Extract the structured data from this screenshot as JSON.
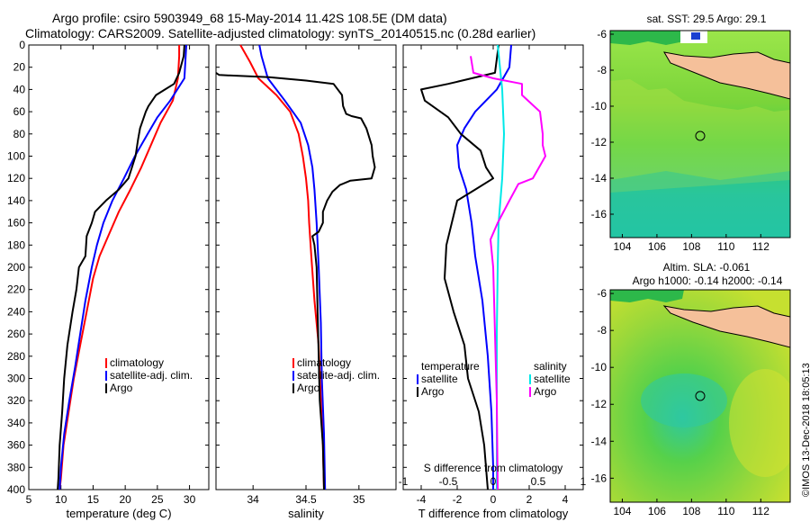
{
  "titles": {
    "line1": "Argo profile: csiro 5903949_68 15-May-2014 11.42S 108.5E (DM data)",
    "line2": "Climatology: CARS2009. Satellite-adjusted climatology: synTS_20140515.nc (0.28d earlier)"
  },
  "colors": {
    "climatology": "#ff0000",
    "satellite": "#0000ff",
    "argo": "#000000",
    "sat_salinity": "#00e8e8",
    "argo_salinity": "#ff00ff"
  },
  "chart_data": [
    {
      "type": "line",
      "title": "temperature profile",
      "xlabel": "temperature (deg C)",
      "ylabel": "",
      "xlim": [
        5,
        33
      ],
      "ylim": [
        400,
        0
      ],
      "xticks": [
        "5",
        "10",
        "15",
        "20",
        "25",
        "30"
      ],
      "yticks": [
        "0",
        "20",
        "40",
        "60",
        "80",
        "100",
        "120",
        "140",
        "160",
        "180",
        "200",
        "220",
        "240",
        "260",
        "280",
        "300",
        "320",
        "340",
        "360",
        "380",
        "400"
      ],
      "legend": {
        "position": "lower-right",
        "entries": [
          "climatology",
          "satellite-adj. clim.",
          "Argo"
        ]
      },
      "series": [
        {
          "name": "climatology",
          "color": "#ff0000",
          "points": [
            [
              28.4,
              0
            ],
            [
              28.4,
              10
            ],
            [
              28.2,
              30
            ],
            [
              27.4,
              50
            ],
            [
              25.5,
              70
            ],
            [
              24.0,
              90
            ],
            [
              22.5,
              110
            ],
            [
              20.8,
              130
            ],
            [
              19.0,
              150
            ],
            [
              17.5,
              170
            ],
            [
              16.0,
              190
            ],
            [
              15.0,
              210
            ],
            [
              14.0,
              240
            ],
            [
              13.0,
              270
            ],
            [
              12.0,
              300
            ],
            [
              11.2,
              330
            ],
            [
              10.4,
              360
            ],
            [
              10.0,
              390
            ],
            [
              9.8,
              400
            ]
          ]
        },
        {
          "name": "satellite-adj. clim.",
          "color": "#0000ff",
          "points": [
            [
              29.5,
              0
            ],
            [
              29.2,
              30
            ],
            [
              27.0,
              50
            ],
            [
              25.0,
              65
            ],
            [
              23.5,
              80
            ],
            [
              21.5,
              100
            ],
            [
              19.8,
              120
            ],
            [
              18.0,
              140
            ],
            [
              16.6,
              160
            ],
            [
              15.6,
              180
            ],
            [
              14.8,
              200
            ],
            [
              13.8,
              230
            ],
            [
              13.0,
              260
            ],
            [
              12.2,
              290
            ],
            [
              11.3,
              320
            ],
            [
              10.5,
              350
            ],
            [
              10.0,
              380
            ],
            [
              9.8,
              400
            ]
          ]
        },
        {
          "name": "Argo",
          "color": "#000000",
          "points": [
            [
              29.2,
              0
            ],
            [
              29.1,
              10
            ],
            [
              28.4,
              25
            ],
            [
              27.6,
              35
            ],
            [
              26.2,
              40
            ],
            [
              24.8,
              45
            ],
            [
              23.6,
              55
            ],
            [
              23.2,
              60
            ],
            [
              22.3,
              75
            ],
            [
              22.0,
              85
            ],
            [
              21.6,
              100
            ],
            [
              20.5,
              120
            ],
            [
              19.0,
              130
            ],
            [
              17.0,
              140
            ],
            [
              15.3,
              150
            ],
            [
              14.8,
              160
            ],
            [
              14.0,
              172
            ],
            [
              13.8,
              190
            ],
            [
              12.8,
              200
            ],
            [
              12.4,
              220
            ],
            [
              11.8,
              240
            ],
            [
              11.0,
              270
            ],
            [
              10.5,
              300
            ],
            [
              10.2,
              330
            ],
            [
              9.8,
              360
            ],
            [
              9.6,
              390
            ],
            [
              9.5,
              400
            ]
          ]
        }
      ]
    },
    {
      "type": "line",
      "title": "salinity profile",
      "xlabel": "salinity",
      "ylabel": "",
      "xlim": [
        33.65,
        35.35
      ],
      "ylim": [
        400,
        0
      ],
      "xticks": [
        "34",
        "34.5",
        "35"
      ],
      "legend": {
        "position": "lower-right",
        "entries": [
          "climatology",
          "satellite-adj. clim.",
          "Argo"
        ]
      },
      "series": [
        {
          "name": "climatology",
          "color": "#ff0000",
          "points": [
            [
              33.88,
              0
            ],
            [
              33.97,
              15
            ],
            [
              34.05,
              30
            ],
            [
              34.22,
              45
            ],
            [
              34.35,
              60
            ],
            [
              34.43,
              80
            ],
            [
              34.47,
              100
            ],
            [
              34.5,
              120
            ],
            [
              34.52,
              140
            ],
            [
              34.53,
              160
            ],
            [
              34.55,
              190
            ],
            [
              34.58,
              230
            ],
            [
              34.62,
              270
            ],
            [
              34.64,
              320
            ],
            [
              34.66,
              360
            ],
            [
              34.67,
              400
            ]
          ]
        },
        {
          "name": "satellite-adj. clim.",
          "color": "#0000ff",
          "points": [
            [
              34.06,
              0
            ],
            [
              34.08,
              10
            ],
            [
              34.14,
              30
            ],
            [
              34.3,
              50
            ],
            [
              34.45,
              70
            ],
            [
              34.52,
              90
            ],
            [
              34.56,
              110
            ],
            [
              34.58,
              130
            ],
            [
              34.6,
              160
            ],
            [
              34.62,
              200
            ],
            [
              34.64,
              250
            ],
            [
              34.65,
              300
            ],
            [
              34.67,
              350
            ],
            [
              34.68,
              400
            ]
          ]
        },
        {
          "name": "Argo",
          "color": "#000000",
          "points": [
            [
              33.65,
              25
            ],
            [
              33.68,
              27
            ],
            [
              34.15,
              29
            ],
            [
              34.5,
              32
            ],
            [
              34.76,
              35
            ],
            [
              34.84,
              45
            ],
            [
              34.85,
              55
            ],
            [
              34.88,
              62
            ],
            [
              34.93,
              64
            ],
            [
              35.02,
              66
            ],
            [
              35.07,
              75
            ],
            [
              35.12,
              90
            ],
            [
              35.13,
              100
            ],
            [
              35.15,
              110
            ],
            [
              35.12,
              120
            ],
            [
              34.92,
              122
            ],
            [
              34.82,
              126
            ],
            [
              34.75,
              132
            ],
            [
              34.7,
              140
            ],
            [
              34.66,
              150
            ],
            [
              34.66,
              160
            ],
            [
              34.62,
              168
            ],
            [
              34.56,
              172
            ],
            [
              34.58,
              180
            ],
            [
              34.6,
              200
            ],
            [
              34.61,
              240
            ],
            [
              34.62,
              280
            ],
            [
              34.63,
              320
            ],
            [
              34.66,
              360
            ],
            [
              34.67,
              400
            ]
          ]
        }
      ]
    },
    {
      "type": "line",
      "title": "difference from climatology",
      "xlabel": "T difference from climatology",
      "xlabel_top": "S difference from climatology",
      "ylabel": "",
      "xlim": [
        -5,
        5
      ],
      "ylim": [
        400,
        0
      ],
      "xticks": [
        "-4",
        "-2",
        "0",
        "2",
        "4"
      ],
      "xticks_top": [
        "-1",
        "-0.5",
        "0",
        "0.5",
        "1"
      ],
      "legend": {
        "position": "lower",
        "entries": [
          "temperature",
          "satellite",
          "Argo",
          "salinity",
          "satellite",
          "Argo"
        ]
      },
      "series": [
        {
          "name": "temperature satellite",
          "color": "#0000ff",
          "points": [
            [
              1.0,
              0
            ],
            [
              0.9,
              20
            ],
            [
              0.2,
              40
            ],
            [
              -1.0,
              60
            ],
            [
              -1.6,
              75
            ],
            [
              -2.0,
              90
            ],
            [
              -1.9,
              110
            ],
            [
              -1.5,
              130
            ],
            [
              -1.2,
              160
            ],
            [
              -1.0,
              190
            ],
            [
              -0.6,
              230
            ],
            [
              -0.3,
              280
            ],
            [
              -0.1,
              330
            ],
            [
              0,
              380
            ],
            [
              0,
              400
            ]
          ]
        },
        {
          "name": "temperature Argo",
          "color": "#000000",
          "points": [
            [
              0.3,
              0
            ],
            [
              0.1,
              25
            ],
            [
              -2.5,
              35
            ],
            [
              -4.0,
              40
            ],
            [
              -3.8,
              50
            ],
            [
              -2.5,
              65
            ],
            [
              -1.8,
              80
            ],
            [
              -0.7,
              95
            ],
            [
              -0.4,
              110
            ],
            [
              0,
              120
            ],
            [
              -1.0,
              130
            ],
            [
              -2.0,
              140
            ],
            [
              -2.3,
              160
            ],
            [
              -2.6,
              180
            ],
            [
              -2.7,
              210
            ],
            [
              -2.2,
              240
            ],
            [
              -1.6,
              270
            ],
            [
              -1.4,
              300
            ],
            [
              -0.8,
              330
            ],
            [
              -0.5,
              360
            ],
            [
              -0.3,
              400
            ]
          ]
        },
        {
          "name": "salinity satellite",
          "color": "#00e8e8",
          "points": [
            [
              0.05,
              0
            ],
            [
              0.1,
              40
            ],
            [
              0.12,
              80
            ],
            [
              0.1,
              120
            ],
            [
              0.06,
              160
            ],
            [
              0.05,
              200
            ],
            [
              0.04,
              260
            ],
            [
              0.04,
              320
            ],
            [
              0.04,
              400
            ]
          ]
        },
        {
          "name": "salinity Argo",
          "color": "#ff00ff",
          "points": [
            [
              -0.25,
              10
            ],
            [
              -0.22,
              25
            ],
            [
              0.0,
              30
            ],
            [
              0.32,
              35
            ],
            [
              0.32,
              45
            ],
            [
              0.52,
              60
            ],
            [
              0.55,
              80
            ],
            [
              0.55,
              90
            ],
            [
              0.58,
              100
            ],
            [
              0.44,
              120
            ],
            [
              0.28,
              125
            ],
            [
              0.18,
              140
            ],
            [
              0.05,
              160
            ],
            [
              -0.03,
              175
            ],
            [
              0.0,
              200
            ],
            [
              0.02,
              260
            ],
            [
              0.04,
              320
            ],
            [
              0.05,
              400
            ]
          ]
        }
      ]
    },
    {
      "type": "heatmap",
      "title": "sat. SST: 29.5 Argo: 29.1",
      "xlabel": "",
      "ylabel": "",
      "xlim": [
        103.3,
        113.7
      ],
      "ylim": [
        -17.3,
        -5.8
      ],
      "xticks": [
        "104",
        "106",
        "108",
        "110",
        "112"
      ],
      "yticks": [
        "-6",
        "-8",
        "-10",
        "-12",
        "-14",
        "-16"
      ],
      "float_position": [
        108.5,
        -11.42
      ]
    },
    {
      "type": "heatmap",
      "title": "Altim. SLA: -0.061",
      "subtitle": "Argo h1000: -0.14 h2000: -0.14",
      "xlabel": "",
      "ylabel": "",
      "xlim": [
        103.3,
        113.7
      ],
      "ylim": [
        -17.3,
        -5.8
      ],
      "xticks": [
        "104",
        "106",
        "108",
        "110",
        "112"
      ],
      "yticks": [
        "-6",
        "-8",
        "-10",
        "-12",
        "-14",
        "-16"
      ],
      "float_position": [
        108.5,
        -11.42
      ]
    }
  ],
  "map_sst": {
    "title": "sat. SST: 29.5 Argo: 29.1"
  },
  "map_sla": {
    "title": "Altim. SLA: -0.061",
    "subtitle": "Argo h1000: -0.14 h2000: -0.14"
  },
  "credit": "©IMOS 13-Dec-2018 18:05:13"
}
